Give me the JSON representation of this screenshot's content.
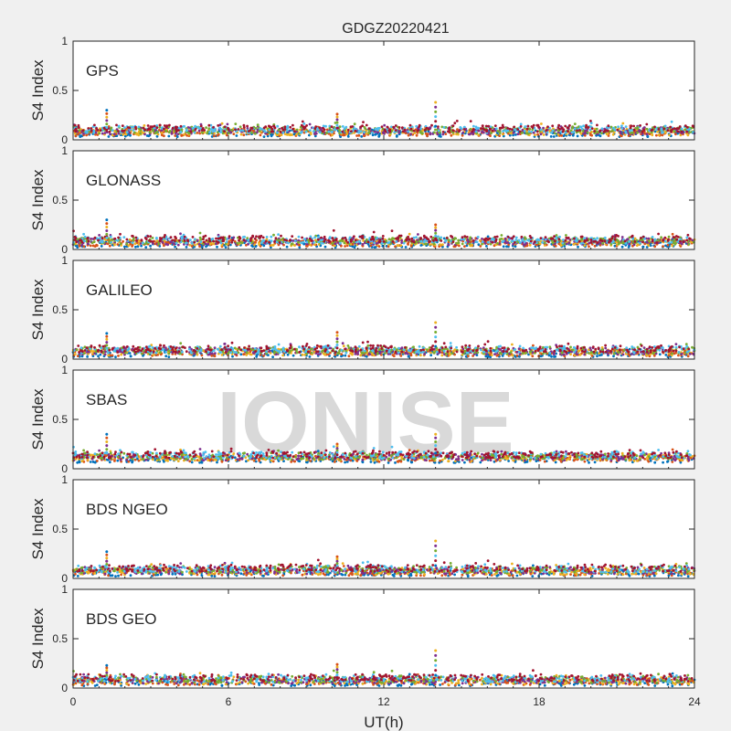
{
  "chart_data": {
    "type": "scatter",
    "title": "GDGZ20220421",
    "xlabel": "UT(h)",
    "ylabel": "S4 Index",
    "xlim": [
      0,
      24
    ],
    "ylim": [
      0,
      1
    ],
    "x_ticks": [
      "0",
      "6",
      "12",
      "18",
      "24"
    ],
    "y_ticks": [
      "0",
      "0.5",
      "1"
    ],
    "watermark": "IONISE",
    "grid": false,
    "series_colors": [
      "#0072bd",
      "#d95319",
      "#edb120",
      "#7e2f8e",
      "#77ac30",
      "#4dbeee",
      "#a2142f"
    ],
    "panels": [
      {
        "label": "GPS",
        "baseline": 0.09,
        "spikes": [
          {
            "x": 1.3,
            "y": 0.3
          },
          {
            "x": 10.2,
            "y": 0.26
          },
          {
            "x": 14.0,
            "y": 0.38
          }
        ]
      },
      {
        "label": "GLONASS",
        "baseline": 0.08,
        "spikes": [
          {
            "x": 1.3,
            "y": 0.3
          },
          {
            "x": 14.0,
            "y": 0.25
          }
        ]
      },
      {
        "label": "GALILEO",
        "baseline": 0.08,
        "spikes": [
          {
            "x": 1.3,
            "y": 0.26
          },
          {
            "x": 10.2,
            "y": 0.27
          },
          {
            "x": 14.0,
            "y": 0.37
          }
        ]
      },
      {
        "label": "SBAS",
        "baseline": 0.12,
        "spikes": [
          {
            "x": 1.3,
            "y": 0.35
          },
          {
            "x": 10.2,
            "y": 0.25
          },
          {
            "x": 14.0,
            "y": 0.35
          }
        ]
      },
      {
        "label": "BDS NGEO",
        "baseline": 0.08,
        "spikes": [
          {
            "x": 1.3,
            "y": 0.27
          },
          {
            "x": 10.2,
            "y": 0.22
          },
          {
            "x": 14.0,
            "y": 0.38
          }
        ]
      },
      {
        "label": "BDS GEO",
        "baseline": 0.08,
        "spikes": [
          {
            "x": 1.3,
            "y": 0.23
          },
          {
            "x": 10.2,
            "y": 0.24
          },
          {
            "x": 14.0,
            "y": 0.38
          }
        ]
      }
    ]
  }
}
